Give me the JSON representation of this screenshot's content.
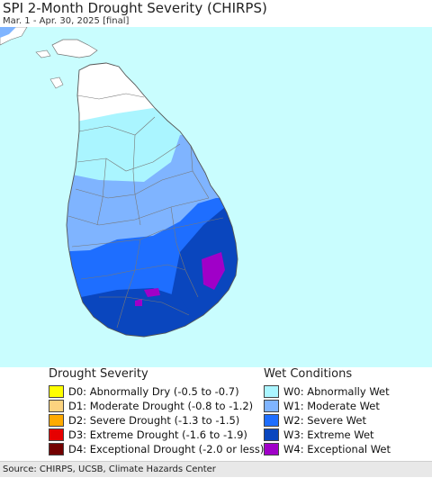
{
  "header": {
    "title": "SPI 2-Month Drought Severity (CHIRPS)",
    "subtitle": "Mar. 1 - Apr. 30, 2025 [final]"
  },
  "map": {
    "region": "Sri Lanka",
    "ocean_color": "#c9fdfe",
    "land_base_color": "#ffffff",
    "boundary_color": "#777777"
  },
  "legend": {
    "drought": {
      "title": "Drought Severity",
      "items": [
        {
          "label": "D0: Abnormally Dry (-0.5 to -0.7)",
          "color": "#ffff00"
        },
        {
          "label": "D1: Moderate Drought (-0.8 to -1.2)",
          "color": "#fcd37f"
        },
        {
          "label": "D2: Severe Drought (-1.3 to -1.5)",
          "color": "#ffaa00"
        },
        {
          "label": "D3: Extreme Drought (-1.6 to -1.9)",
          "color": "#e60000"
        },
        {
          "label": "D4: Exceptional Drought (-2.0 or less)",
          "color": "#730000"
        }
      ]
    },
    "wet": {
      "title": "Wet Conditions",
      "items": [
        {
          "label": "W0: Abnormally Wet",
          "color": "#aaf5ff"
        },
        {
          "label": "W1: Moderate Wet",
          "color": "#7fb4ff"
        },
        {
          "label": "W2: Severe Wet",
          "color": "#1e6eff"
        },
        {
          "label": "W3: Extreme Wet",
          "color": "#0a46be"
        },
        {
          "label": "W4: Exceptional Wet",
          "color": "#a000c8"
        }
      ]
    }
  },
  "footer": {
    "source": "Source: CHIRPS, UCSB, Climate Hazards Center"
  }
}
